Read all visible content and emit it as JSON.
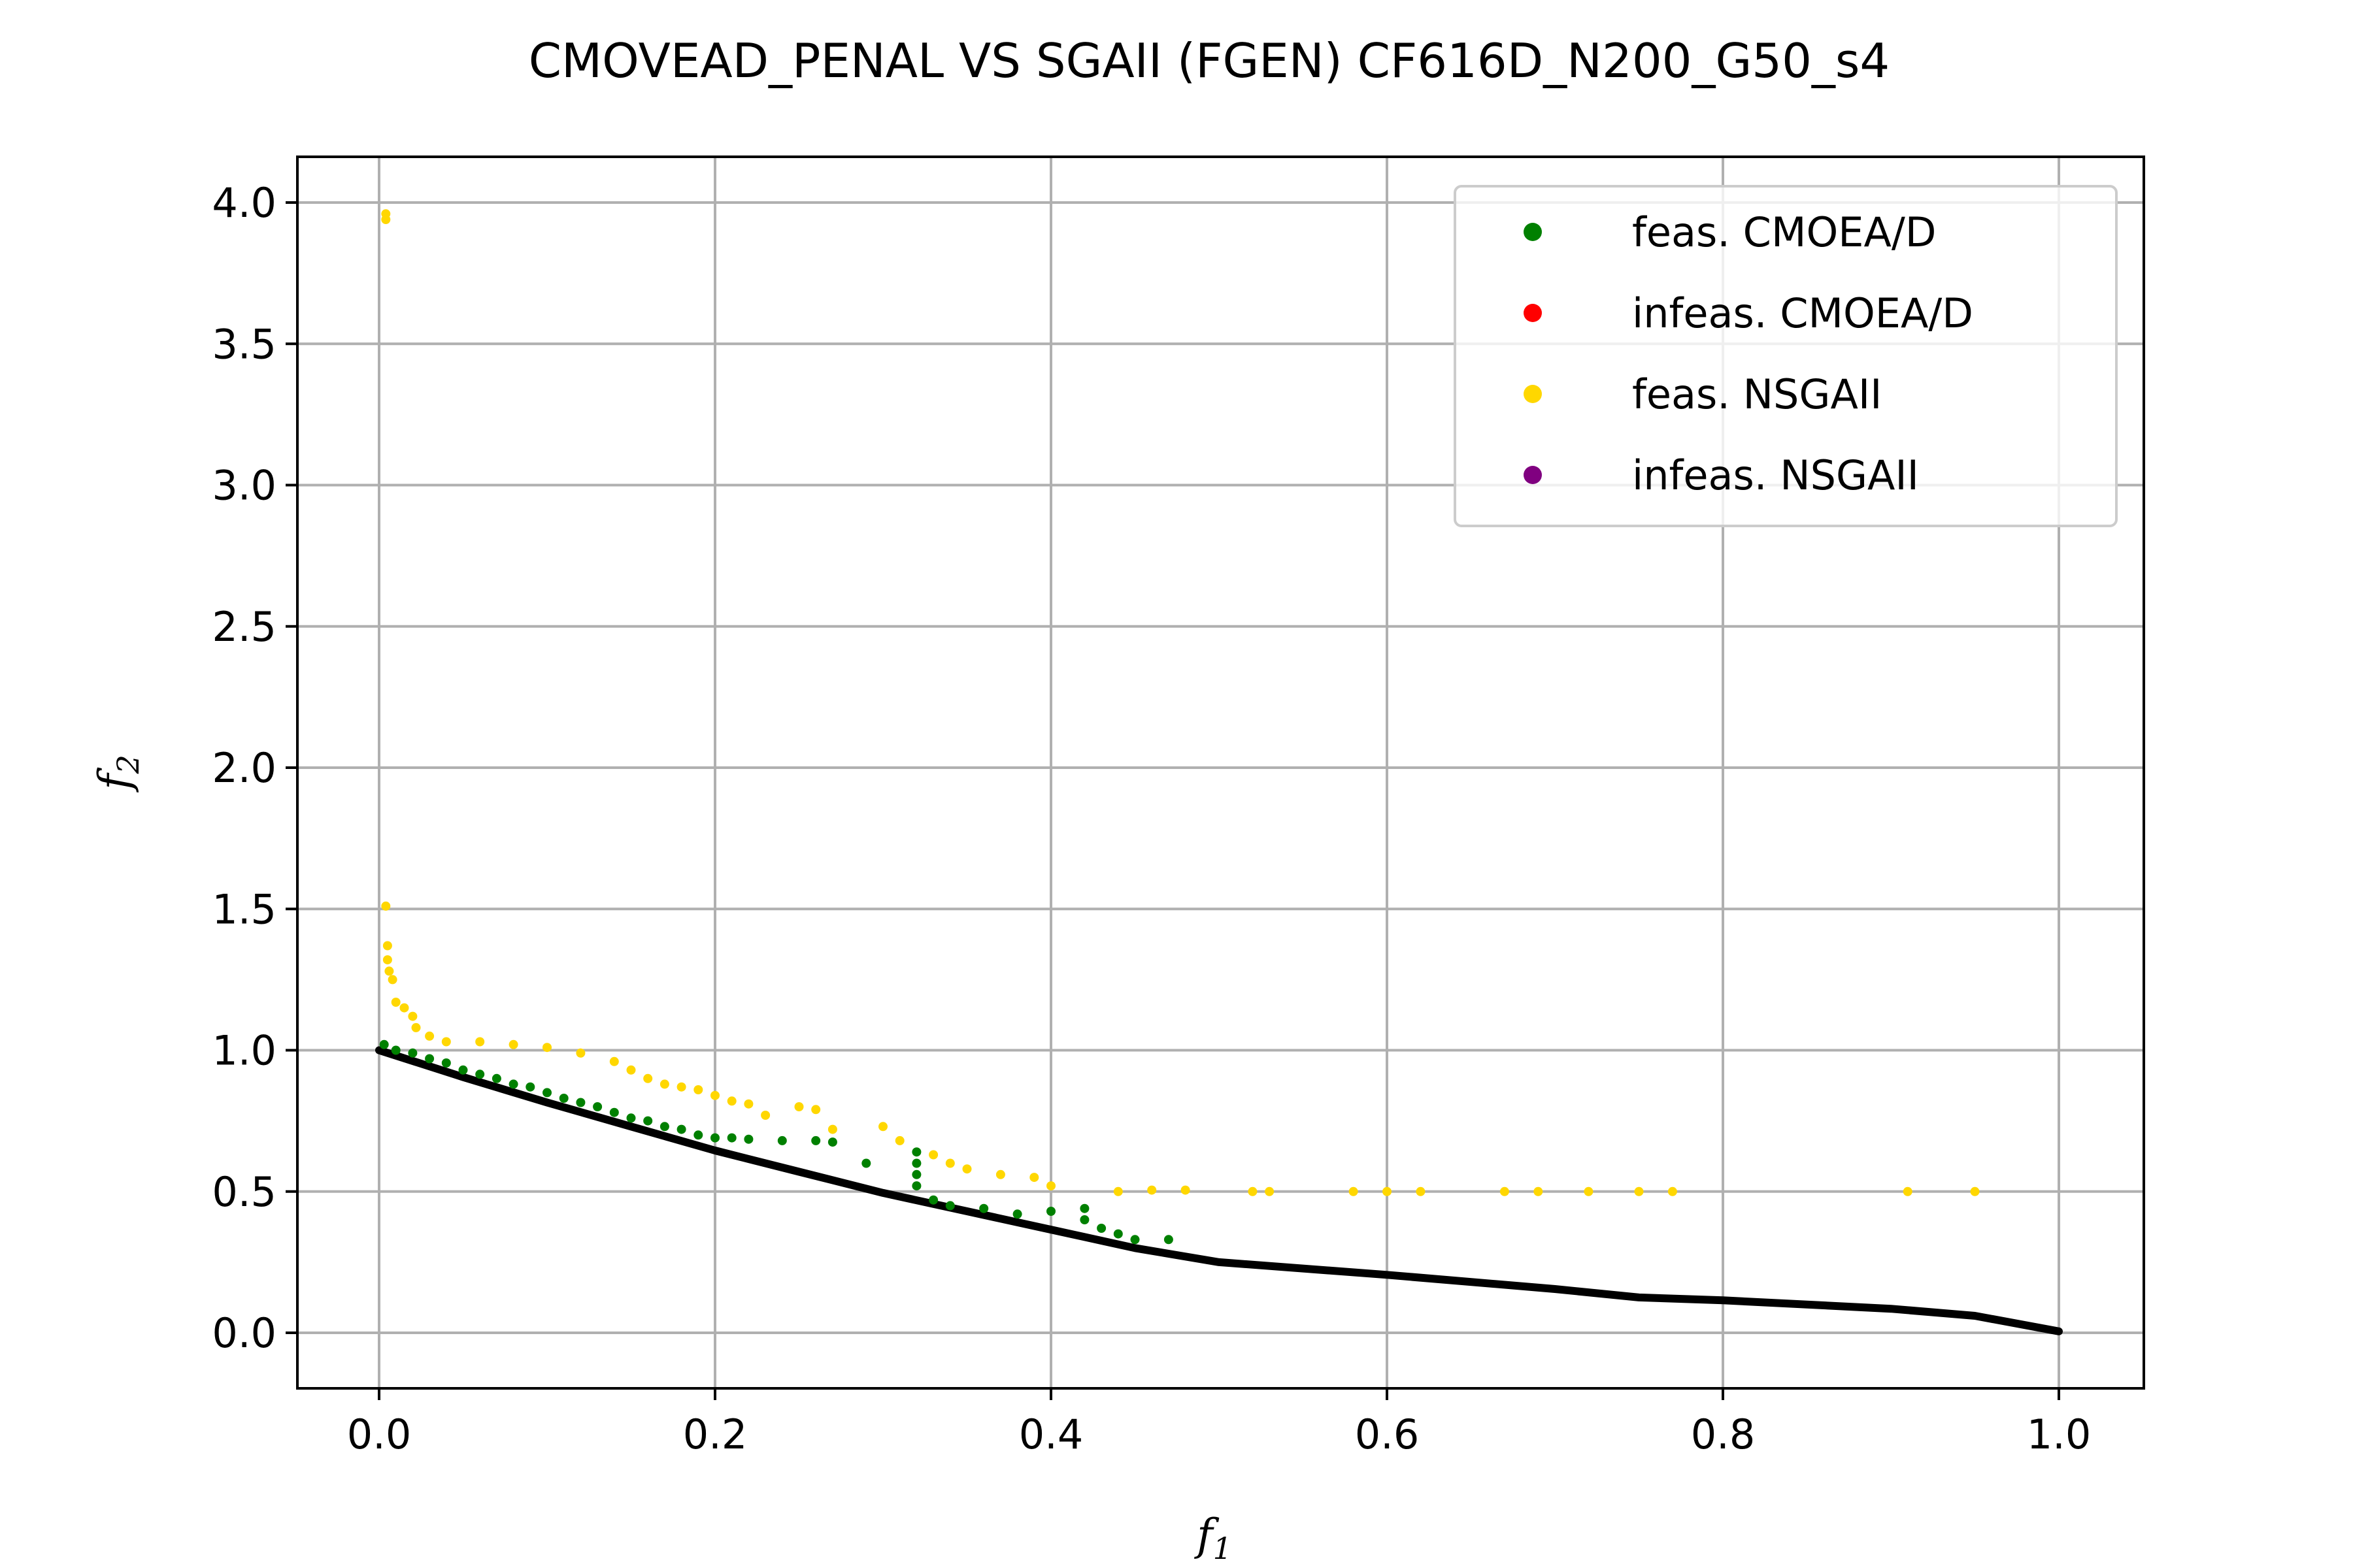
{
  "chart_data": {
    "type": "scatter",
    "title": "CMOVEAD_PENAL VS SGAII (FGEN) CF616D_N200_G50_s4",
    "xlabel": {
      "main": "f",
      "sub": "1"
    },
    "ylabel": {
      "main": "f",
      "sub": "2"
    },
    "xlim": [
      -0.05,
      1.05
    ],
    "ylim": [
      -0.2,
      4.15
    ],
    "xticks": [
      "0.0",
      "0.2",
      "0.4",
      "0.6",
      "0.8",
      "1.0"
    ],
    "yticks": [
      "0.0",
      "0.5",
      "1.0",
      "1.5",
      "2.0",
      "2.5",
      "3.0",
      "3.5",
      "4.0"
    ],
    "grid": true,
    "legend_position": "top-right",
    "pareto_front": {
      "color": "#000000",
      "points": [
        [
          0.0,
          1.0
        ],
        [
          0.05,
          0.905
        ],
        [
          0.1,
          0.815
        ],
        [
          0.15,
          0.73
        ],
        [
          0.2,
          0.645
        ],
        [
          0.25,
          0.57
        ],
        [
          0.3,
          0.495
        ],
        [
          0.35,
          0.43
        ],
        [
          0.4,
          0.365
        ],
        [
          0.45,
          0.3
        ],
        [
          0.5,
          0.25
        ],
        [
          0.6,
          0.205
        ],
        [
          0.7,
          0.155
        ],
        [
          0.75,
          0.125
        ],
        [
          0.8,
          0.115
        ],
        [
          0.9,
          0.085
        ],
        [
          0.95,
          0.06
        ],
        [
          1.0,
          0.005
        ]
      ]
    },
    "series": [
      {
        "name": "feas. CMOEA/D",
        "color": "#008000",
        "points": [
          [
            0.003,
            1.02
          ],
          [
            0.01,
            1.0
          ],
          [
            0.02,
            0.99
          ],
          [
            0.03,
            0.97
          ],
          [
            0.04,
            0.955
          ],
          [
            0.05,
            0.93
          ],
          [
            0.06,
            0.915
          ],
          [
            0.07,
            0.9
          ],
          [
            0.08,
            0.88
          ],
          [
            0.09,
            0.87
          ],
          [
            0.1,
            0.85
          ],
          [
            0.11,
            0.83
          ],
          [
            0.12,
            0.815
          ],
          [
            0.13,
            0.8
          ],
          [
            0.14,
            0.78
          ],
          [
            0.15,
            0.76
          ],
          [
            0.16,
            0.75
          ],
          [
            0.17,
            0.73
          ],
          [
            0.18,
            0.72
          ],
          [
            0.19,
            0.7
          ],
          [
            0.2,
            0.69
          ],
          [
            0.21,
            0.69
          ],
          [
            0.22,
            0.685
          ],
          [
            0.24,
            0.68
          ],
          [
            0.26,
            0.68
          ],
          [
            0.27,
            0.675
          ],
          [
            0.29,
            0.6
          ],
          [
            0.32,
            0.64
          ],
          [
            0.32,
            0.6
          ],
          [
            0.32,
            0.56
          ],
          [
            0.32,
            0.52
          ],
          [
            0.33,
            0.47
          ],
          [
            0.34,
            0.45
          ],
          [
            0.36,
            0.44
          ],
          [
            0.38,
            0.42
          ],
          [
            0.4,
            0.43
          ],
          [
            0.42,
            0.44
          ],
          [
            0.42,
            0.4
          ],
          [
            0.43,
            0.37
          ],
          [
            0.44,
            0.35
          ],
          [
            0.45,
            0.33
          ],
          [
            0.47,
            0.33
          ]
        ]
      },
      {
        "name": "infeas. CMOEA/D",
        "color": "#ff0000",
        "points": []
      },
      {
        "name": "feas. NSGAII",
        "color": "#ffd700",
        "points": [
          [
            0.004,
            3.96
          ],
          [
            0.004,
            3.94
          ],
          [
            0.004,
            1.51
          ],
          [
            0.005,
            1.37
          ],
          [
            0.005,
            1.32
          ],
          [
            0.006,
            1.28
          ],
          [
            0.008,
            1.25
          ],
          [
            0.01,
            1.17
          ],
          [
            0.015,
            1.15
          ],
          [
            0.02,
            1.12
          ],
          [
            0.022,
            1.08
          ],
          [
            0.03,
            1.05
          ],
          [
            0.04,
            1.03
          ],
          [
            0.06,
            1.03
          ],
          [
            0.08,
            1.02
          ],
          [
            0.1,
            1.01
          ],
          [
            0.12,
            0.99
          ],
          [
            0.14,
            0.96
          ],
          [
            0.15,
            0.93
          ],
          [
            0.16,
            0.9
          ],
          [
            0.17,
            0.88
          ],
          [
            0.18,
            0.87
          ],
          [
            0.19,
            0.86
          ],
          [
            0.2,
            0.84
          ],
          [
            0.21,
            0.82
          ],
          [
            0.22,
            0.81
          ],
          [
            0.23,
            0.77
          ],
          [
            0.25,
            0.8
          ],
          [
            0.26,
            0.79
          ],
          [
            0.27,
            0.72
          ],
          [
            0.3,
            0.73
          ],
          [
            0.31,
            0.68
          ],
          [
            0.33,
            0.63
          ],
          [
            0.34,
            0.6
          ],
          [
            0.35,
            0.58
          ],
          [
            0.37,
            0.56
          ],
          [
            0.39,
            0.55
          ],
          [
            0.4,
            0.52
          ],
          [
            0.44,
            0.5
          ],
          [
            0.46,
            0.505
          ],
          [
            0.48,
            0.505
          ],
          [
            0.52,
            0.5
          ],
          [
            0.53,
            0.5
          ],
          [
            0.58,
            0.5
          ],
          [
            0.6,
            0.5
          ],
          [
            0.62,
            0.5
          ],
          [
            0.67,
            0.5
          ],
          [
            0.69,
            0.5
          ],
          [
            0.72,
            0.5
          ],
          [
            0.75,
            0.5
          ],
          [
            0.77,
            0.5
          ],
          [
            0.91,
            0.5
          ],
          [
            0.95,
            0.5
          ]
        ]
      },
      {
        "name": "infeas. NSGAII",
        "color": "#800080",
        "points": []
      }
    ]
  }
}
